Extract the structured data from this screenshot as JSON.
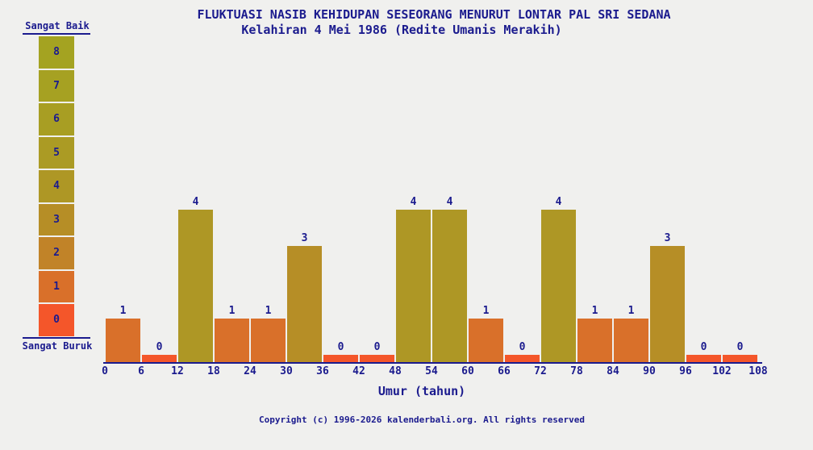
{
  "chart_data": {
    "type": "bar",
    "title": "FLUKTUASI NASIB KEHIDUPAN SESEORANG MENURUT LONTAR PAL SRI SEDANA",
    "subtitle": "Kelahiran 4 Mei 1986 (Redite Umanis Merakih)",
    "xlabel": "Umur (tahun)",
    "ylabel": "",
    "ylim": [
      0,
      8
    ],
    "grid": false,
    "x_tick_labels": [
      "0",
      "6",
      "12",
      "18",
      "24",
      "30",
      "36",
      "42",
      "48",
      "54",
      "60",
      "66",
      "72",
      "78",
      "84",
      "90",
      "96",
      "102",
      "108"
    ],
    "categories": [
      "0-6",
      "6-12",
      "12-18",
      "18-24",
      "24-30",
      "30-36",
      "36-42",
      "42-48",
      "48-54",
      "54-60",
      "60-66",
      "66-72",
      "72-78",
      "78-84",
      "84-90",
      "90-96",
      "96-102",
      "102-108"
    ],
    "values": [
      1,
      0,
      4,
      1,
      1,
      3,
      0,
      0,
      4,
      4,
      1,
      0,
      4,
      1,
      1,
      3,
      0,
      0
    ],
    "palette": {
      "0": "#f4562a",
      "1": "#d9702a",
      "2": "#c18328",
      "3": "#b68e26",
      "4": "#ae9725",
      "5": "#ab9b24",
      "6": "#a89e23",
      "7": "#a6a122",
      "8": "#a4a321"
    }
  },
  "scale": {
    "top_label": "Sangat Baik",
    "bottom_label": "Sangat Buruk",
    "values": [
      8,
      7,
      6,
      5,
      4,
      3,
      2,
      1,
      0
    ]
  },
  "footer": {
    "copyright": "Copyright (c) 1996-2026 kalenderbali.org. All rights reserved"
  },
  "colors": {
    "text_navy": "#1b1b8e",
    "background": "#f0f0ee"
  }
}
